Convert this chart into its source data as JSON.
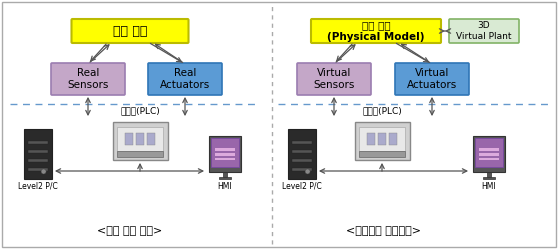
{
  "title_left": "실제 설비",
  "title_right": "가상 설비\n(Physical Model)",
  "title_right2": "3D\nVirtual Plant",
  "left_box1": "Real\nSensors",
  "left_box2": "Real\nActuators",
  "right_box1": "Virtual\nSensors",
  "right_box2": "Virtual\nActuators",
  "plc_label_left": "제어기(PLC)",
  "plc_label_right": "제어기(PLC)",
  "level2_left": "Level2 P/C",
  "hmi_left": "HMI",
  "level2_right": "Level2 P/C",
  "hmi_right": "HMI",
  "caption_left": "<실제 제어 환경>",
  "caption_right": "<가상설비 제어환경>",
  "yellow_fill": "#FFFF00",
  "sensors_left_fill": "#C4A7C8",
  "sensors_left_edge": "#9B7DB0",
  "actuators_left_fill": "#5B9BD5",
  "actuators_left_edge": "#2F75B6",
  "sensors_right_fill": "#C4A7C8",
  "sensors_right_edge": "#9B7DB0",
  "actuators_right_fill": "#5B9BD5",
  "actuators_right_edge": "#2F75B6",
  "green_fill": "#D9EAD3",
  "green_edge": "#82B366",
  "arrow_color": "#555555",
  "dashed_color": "#6699CC"
}
